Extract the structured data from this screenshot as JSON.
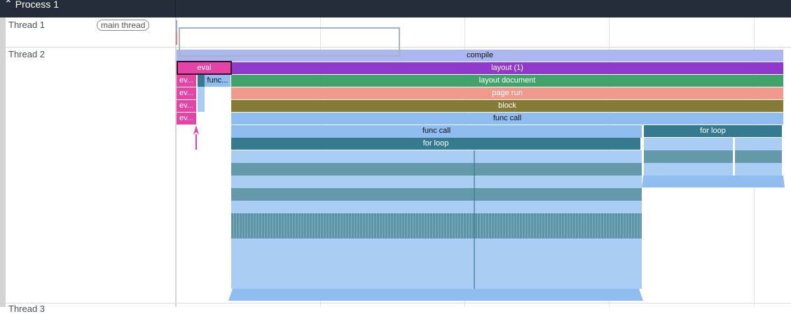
{
  "process": {
    "title": "Process 1",
    "chevron": "chevron-up-icon"
  },
  "threads": [
    {
      "name": "Thread 1",
      "tag": "main thread"
    },
    {
      "name": "Thread 2"
    },
    {
      "name": "Thread 3"
    }
  ],
  "slices": {
    "compile": "compile",
    "eval": "eval",
    "layout": "layout (1)",
    "layout_document": "layout document",
    "page_run": "page run",
    "block": "block",
    "func_call": "func call",
    "func_call_label": "func call",
    "for_loop": "for loop",
    "for_loop_right": "for loop",
    "ev": "ev...",
    "func_short": "func..."
  },
  "colors": {
    "header": "#262d3a",
    "compile": "#abb7f0",
    "layout": "#9039cc",
    "layout_document": "#40a36a",
    "page_run": "#f09a8d",
    "block": "#867b34",
    "func_call": "#90bdf0",
    "for_loop": "#367a8f",
    "eval": "#e444a6",
    "light": "#aacdf4",
    "teal_band": "#6499aa"
  }
}
